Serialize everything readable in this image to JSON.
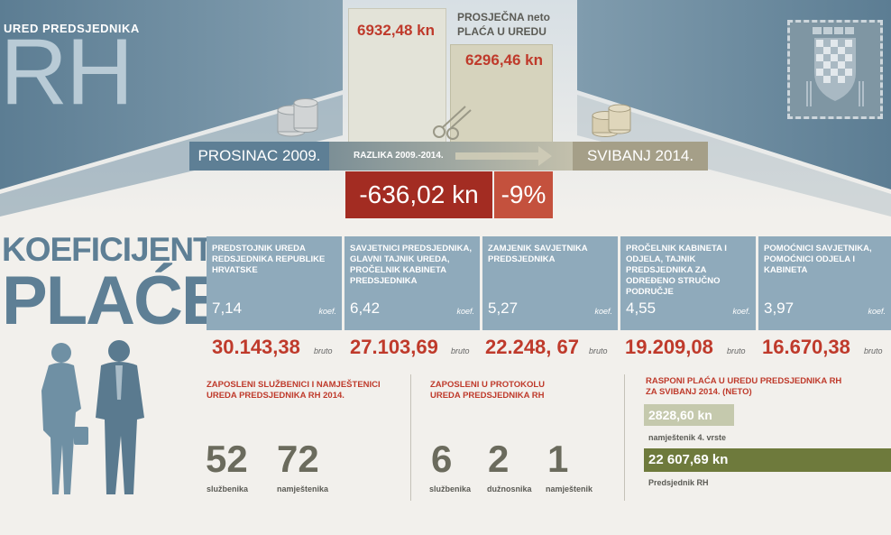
{
  "office": {
    "small": "URED PREDSJEDNIKA",
    "big": "RH"
  },
  "salary": {
    "value_2009": "6932,48 kn",
    "value_2014": "6296,46 kn",
    "title_line1": "PROSJEČNA  neto",
    "title_line2": "PLAĆA U UREDU",
    "label_2009": "PROSINAC 2009.",
    "label_2014": "SVIBANJ 2014.",
    "diff_label": "RAZLIKA 2009.-2014.",
    "diff_value": "-636,02 kn",
    "diff_percent": "-9%"
  },
  "coef": {
    "title_line1": "KOEFICIJENTI I",
    "title_line2": "PLAĆE",
    "coef_label": "koef.",
    "bruto_label": "bruto",
    "columns": [
      {
        "position": "PREDSTOJNIK UREDA REDSJEDNIKA REPUBLIKE HRVATSKE",
        "koef": "7,14",
        "bruto": "30.143,38"
      },
      {
        "position": "SAVJETNICI PREDSJEDNIKA, GLAVNI TAJNIK UREDA, PROČELNIK KABINETA PREDSJEDNIKA",
        "koef": "6,42",
        "bruto": "27.103,69"
      },
      {
        "position": "ZAMJENIK SAVJETNIKA PREDSJEDNIKA",
        "koef": "5,27",
        "bruto": "22.248, 67"
      },
      {
        "position": "PROČELNIK KABINETA I ODJELA, TAJNIK PREDSJEDNIKA ZA ODREĐENO STRUČNO PODRUČJE",
        "koef": "4,55",
        "bruto": "19.209,08"
      },
      {
        "position": "POMOĆNICI SAVJETNIKA, POMOĆNICI ODJELA I KABINETA",
        "koef": "3,97",
        "bruto": "16.670,38"
      }
    ]
  },
  "staff": {
    "heading_line1": "ZAPOSLENI SLUŽBENICI I NAMJEŠTENICI",
    "heading_line2": "UREDA PREDSJEDNIKA RH 2014.",
    "items": [
      {
        "num": "52",
        "label": "službenika"
      },
      {
        "num": "72",
        "label": "namještenika"
      }
    ]
  },
  "protocol": {
    "heading_line1": "ZAPOSLENI U PROTOKOLU",
    "heading_line2": "UREDA PREDSJEDNIKA RH",
    "items": [
      {
        "num": "6",
        "label": "službenika"
      },
      {
        "num": "2",
        "label": "dužnosnika"
      },
      {
        "num": "1",
        "label": "namještenik"
      }
    ]
  },
  "range": {
    "heading_line1": "RASPONI PLAĆA U UREDU PREDSJEDNIKA RH",
    "heading_line2": "ZA SVIBANJ 2014. (neto)",
    "min_value": "2828,60 kn",
    "min_label": "namještenik 4. vrste",
    "max_value": "22 607,69 kn",
    "max_label": "Predsjednik RH"
  },
  "icons": [
    "coin-stack-icon",
    "scissors-icon",
    "coat-of-arms-icon",
    "arrow-right-icon",
    "people-silhouette-icon"
  ],
  "colors": {
    "slate": "#5e7f95",
    "red": "#bf3a2b",
    "olive": "#8a8874",
    "green": "#6e7a3c",
    "lightgreen": "#c5c9ad"
  }
}
